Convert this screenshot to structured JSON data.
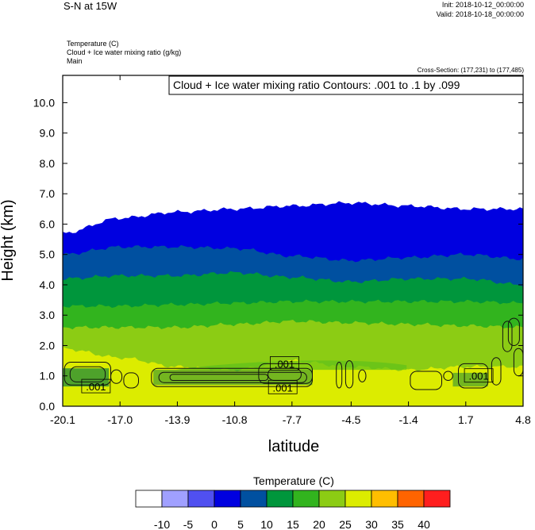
{
  "header": {
    "title": "S-N at 15W",
    "init": "Init: 2018-10-12_00:00:00",
    "valid": "Valid: 2018-10-18_00:00:00",
    "field1": "Temperature   (C)",
    "field2": "Cloud + Ice water mixing ratio   (g/kg)",
    "field3": "Main",
    "cross_section": "Cross-Section: (177,231) to (177,485)"
  },
  "chart_data": {
    "type": "heatmap",
    "subtype": "vertical cross-section, filled temperature contours with cloud water line contours",
    "title": "",
    "xlabel": "latitude",
    "ylabel": "Height (km)",
    "xlim": [
      -20.1,
      4.8
    ],
    "ylim": [
      0.0,
      10.9
    ],
    "x_ticks": [
      "-20.1",
      "-17.0",
      "-13.9",
      "-10.8",
      "-7.7",
      "-4.5",
      "-1.4",
      "1.7",
      "4.8"
    ],
    "x_tick_values": [
      -20.1,
      -17.0,
      -13.9,
      -10.8,
      -7.7,
      -4.5,
      -1.4,
      1.7,
      4.8
    ],
    "y_ticks": [
      "0.0",
      "1.0",
      "2.0",
      "3.0",
      "4.0",
      "5.0",
      "6.0",
      "7.0",
      "8.0",
      "9.0",
      "10.0"
    ],
    "y_tick_values": [
      0,
      1,
      2,
      3,
      4,
      5,
      6,
      7,
      8,
      9,
      10
    ],
    "contour_title": "Cloud + Ice water mixing ratio Contours: .001 to .1 by .099",
    "contour_labels": [
      {
        "text": ".001",
        "x": -18.3,
        "y": 0.65
      },
      {
        "text": ".001",
        "x": -8.1,
        "y": 1.4
      },
      {
        "text": ".001",
        "x": -8.2,
        "y": 0.62
      },
      {
        "text": ".001",
        "x": 2.4,
        "y": 1.0
      }
    ],
    "band_latitudes": [
      -20.1,
      -17.0,
      -13.9,
      -10.8,
      -7.7,
      -4.5,
      -1.4,
      1.7,
      4.8
    ],
    "isotherm_heights_km": [
      {
        "level": 20,
        "heights": [
          1.9,
          1.6,
          1.3,
          1.2,
          1.5,
          1.3,
          1.2,
          1.3,
          1.3
        ]
      },
      {
        "level": 15,
        "heights": [
          2.6,
          2.6,
          2.6,
          2.7,
          2.8,
          2.75,
          2.7,
          2.65,
          2.6
        ]
      },
      {
        "level": 10,
        "heights": [
          3.3,
          3.3,
          3.35,
          3.4,
          3.45,
          3.45,
          3.45,
          3.45,
          3.4
        ]
      },
      {
        "level": 5,
        "heights": [
          4.2,
          4.3,
          4.3,
          4.4,
          4.25,
          4.1,
          4.2,
          4.2,
          4.0
        ]
      },
      {
        "level": 0,
        "heights": [
          5.0,
          5.25,
          5.25,
          5.2,
          4.95,
          4.8,
          4.9,
          5.0,
          4.85
        ]
      },
      {
        "level": -5,
        "heights": [
          5.7,
          6.2,
          6.4,
          6.5,
          6.6,
          6.7,
          6.6,
          6.5,
          6.5
        ]
      }
    ],
    "low_warm_region": [
      {
        "level": 25,
        "x": [
          -13.0,
          -12.0,
          -8.0,
          -4.0,
          0.0,
          3.0,
          4.8
        ],
        "heights": [
          0.0,
          0.3,
          0.2,
          0.25,
          0.4,
          0.8,
          0.8
        ]
      }
    ],
    "legend": {
      "title": "Temperature  (C)",
      "labels": [
        "-10",
        "-5",
        "0",
        "5",
        "10",
        "15",
        "20",
        "25",
        "30",
        "35",
        "40"
      ],
      "colors": [
        "#ffffff",
        "#a0a0ff",
        "#5050f0",
        "#0000e0",
        "#0050a0",
        "#00963c",
        "#32b41e",
        "#8ccc14",
        "#dcec00",
        "#ffbe00",
        "#ff6400",
        "#ff1e1e"
      ]
    }
  }
}
